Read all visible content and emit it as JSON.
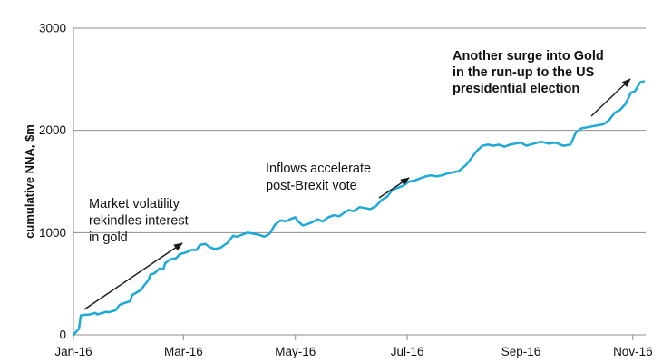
{
  "chart_data": {
    "type": "line",
    "title": "",
    "xlabel": "",
    "ylabel": "cumulative NNA, $m",
    "ylim": [
      0,
      3000
    ],
    "yticks": [
      0,
      1000,
      2000,
      3000
    ],
    "ytick_labels": [
      "0",
      "1000",
      "2000",
      "3000"
    ],
    "xticks": [
      "2016-01-01",
      "2016-03-01",
      "2016-05-01",
      "2016-07-01",
      "2016-09-01",
      "2016-11-01"
    ],
    "xtick_labels": [
      "Jan-16",
      "Mar-16",
      "May-16",
      "Jul-16",
      "Sep-16",
      "Nov-16"
    ],
    "xlim": [
      "2016-01-01",
      "2016-11-08"
    ],
    "grid": "horizontal",
    "legend": "none",
    "colors": {
      "line": "#1ea9d8",
      "grid": "#8c8c8c",
      "axis": "#8c8c8c",
      "arrow": "#1a1a1a"
    },
    "series": [
      {
        "x": [
          "2016-01-01",
          "2016-01-04",
          "2016-01-05",
          "2016-01-07",
          "2016-01-10",
          "2016-01-13",
          "2016-01-14",
          "2016-01-19",
          "2016-01-20",
          "2016-01-24",
          "2016-01-26",
          "2016-01-27",
          "2016-02-01",
          "2016-02-02",
          "2016-02-07",
          "2016-02-08",
          "2016-02-11",
          "2016-02-12",
          "2016-02-14",
          "2016-02-17",
          "2016-02-19",
          "2016-02-20",
          "2016-02-23",
          "2016-02-26",
          "2016-02-28",
          "2016-03-01",
          "2016-03-03",
          "2016-03-05",
          "2016-03-08",
          "2016-03-10",
          "2016-03-13",
          "2016-03-15",
          "2016-03-18",
          "2016-03-21",
          "2016-03-25",
          "2016-03-28",
          "2016-03-30",
          "2016-04-02",
          "2016-04-05",
          "2016-04-08",
          "2016-04-11",
          "2016-04-14",
          "2016-04-17",
          "2016-04-20",
          "2016-04-23",
          "2016-04-26",
          "2016-04-28",
          "2016-05-01",
          "2016-05-02",
          "2016-05-05",
          "2016-05-07",
          "2016-05-10",
          "2016-05-13",
          "2016-05-16",
          "2016-05-19",
          "2016-05-22",
          "2016-05-25",
          "2016-05-28",
          "2016-05-30",
          "2016-06-02",
          "2016-06-05",
          "2016-06-08",
          "2016-06-11",
          "2016-06-14",
          "2016-06-17",
          "2016-06-20",
          "2016-06-23",
          "2016-06-26",
          "2016-06-29",
          "2016-07-02",
          "2016-07-05",
          "2016-07-08",
          "2016-07-11",
          "2016-07-14",
          "2016-07-17",
          "2016-07-20",
          "2016-07-23",
          "2016-07-26",
          "2016-07-29",
          "2016-08-02",
          "2016-08-05",
          "2016-08-08",
          "2016-08-11",
          "2016-08-14",
          "2016-08-17",
          "2016-08-20",
          "2016-08-23",
          "2016-08-26",
          "2016-08-29",
          "2016-09-01",
          "2016-09-04",
          "2016-09-08",
          "2016-09-12",
          "2016-09-16",
          "2016-09-20",
          "2016-09-24",
          "2016-09-28",
          "2016-10-01",
          "2016-10-04",
          "2016-10-07",
          "2016-10-10",
          "2016-10-13",
          "2016-10-16",
          "2016-10-19",
          "2016-10-22",
          "2016-10-25",
          "2016-10-28",
          "2016-10-31",
          "2016-11-02",
          "2016-11-05",
          "2016-11-07"
        ],
        "y": [
          0,
          60,
          190,
          195,
          200,
          215,
          200,
          225,
          220,
          240,
          290,
          300,
          330,
          390,
          440,
          470,
          540,
          590,
          600,
          650,
          640,
          700,
          740,
          750,
          790,
          800,
          810,
          830,
          830,
          880,
          890,
          860,
          840,
          850,
          900,
          970,
          960,
          980,
          1000,
          990,
          980,
          960,
          990,
          1080,
          1120,
          1110,
          1130,
          1150,
          1120,
          1070,
          1080,
          1100,
          1130,
          1110,
          1150,
          1170,
          1160,
          1200,
          1220,
          1210,
          1250,
          1240,
          1230,
          1260,
          1320,
          1350,
          1420,
          1440,
          1460,
          1500,
          1510,
          1530,
          1550,
          1560,
          1550,
          1560,
          1580,
          1590,
          1600,
          1660,
          1730,
          1800,
          1850,
          1860,
          1850,
          1860,
          1840,
          1860,
          1870,
          1880,
          1850,
          1870,
          1890,
          1870,
          1880,
          1850,
          1860,
          1980,
          2020,
          2030,
          2040,
          2050,
          2060,
          2100,
          2170,
          2200,
          2260,
          2370,
          2380,
          2470,
          2480
        ]
      }
    ],
    "annotations": [
      {
        "id": "volatility",
        "date": "2016-03-01",
        "value": 900,
        "lines": [
          "Market volatility",
          "rekindles interest",
          "in gold"
        ],
        "bold": false
      },
      {
        "id": "brexit",
        "date": "2016-07-04",
        "value": 1550,
        "lines": [
          "Inflows accelerate",
          "post-Brexit vote"
        ],
        "bold": false
      },
      {
        "id": "election",
        "date": "2016-11-01",
        "value": 2450,
        "lines": [
          "Another surge into Gold",
          "in the run-up to the US",
          "presidential election"
        ],
        "bold": true
      }
    ]
  }
}
